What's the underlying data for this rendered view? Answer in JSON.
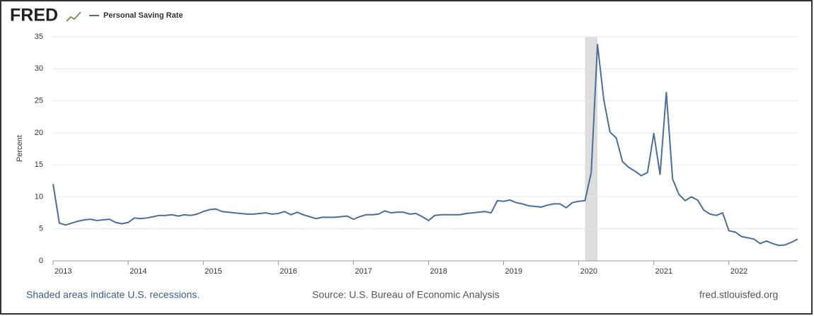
{
  "logo": "FRED",
  "chart_data": {
    "type": "line",
    "y_label": "Percent",
    "x": [
      "2013-01",
      "2013-02",
      "2013-03",
      "2013-04",
      "2013-05",
      "2013-06",
      "2013-07",
      "2013-08",
      "2013-09",
      "2013-10",
      "2013-11",
      "2013-12",
      "2014-01",
      "2014-02",
      "2014-03",
      "2014-04",
      "2014-05",
      "2014-06",
      "2014-07",
      "2014-08",
      "2014-09",
      "2014-10",
      "2014-11",
      "2014-12",
      "2015-01",
      "2015-02",
      "2015-03",
      "2015-04",
      "2015-05",
      "2015-06",
      "2015-07",
      "2015-08",
      "2015-09",
      "2015-10",
      "2015-11",
      "2015-12",
      "2016-01",
      "2016-02",
      "2016-03",
      "2016-04",
      "2016-05",
      "2016-06",
      "2016-07",
      "2016-08",
      "2016-09",
      "2016-10",
      "2016-11",
      "2016-12",
      "2017-01",
      "2017-02",
      "2017-03",
      "2017-04",
      "2017-05",
      "2017-06",
      "2017-07",
      "2017-08",
      "2017-09",
      "2017-10",
      "2017-11",
      "2017-12",
      "2018-01",
      "2018-02",
      "2018-03",
      "2018-04",
      "2018-05",
      "2018-06",
      "2018-07",
      "2018-08",
      "2018-09",
      "2018-10",
      "2018-11",
      "2018-12",
      "2019-01",
      "2019-02",
      "2019-03",
      "2019-04",
      "2019-05",
      "2019-06",
      "2019-07",
      "2019-08",
      "2019-09",
      "2019-10",
      "2019-11",
      "2019-12",
      "2020-01",
      "2020-02",
      "2020-03",
      "2020-04",
      "2020-05",
      "2020-06",
      "2020-07",
      "2020-08",
      "2020-09",
      "2020-10",
      "2020-11",
      "2020-12",
      "2021-01",
      "2021-02",
      "2021-03",
      "2021-04",
      "2021-05",
      "2021-06",
      "2021-07",
      "2021-08",
      "2021-09",
      "2021-10",
      "2021-11",
      "2021-12",
      "2022-01",
      "2022-02",
      "2022-03",
      "2022-04",
      "2022-05",
      "2022-06",
      "2022-07",
      "2022-08",
      "2022-09",
      "2022-10",
      "2022-11",
      "2022-12"
    ],
    "series": [
      {
        "name": "Personal Saving Rate",
        "color": "#4b6f96",
        "values": [
          12.0,
          5.9,
          5.6,
          5.9,
          6.2,
          6.4,
          6.5,
          6.3,
          6.4,
          6.5,
          6.0,
          5.8,
          6.0,
          6.7,
          6.6,
          6.7,
          6.9,
          7.1,
          7.1,
          7.2,
          7.0,
          7.2,
          7.1,
          7.3,
          7.7,
          8.0,
          8.1,
          7.7,
          7.6,
          7.5,
          7.4,
          7.3,
          7.3,
          7.4,
          7.5,
          7.3,
          7.4,
          7.7,
          7.2,
          7.6,
          7.2,
          6.9,
          6.6,
          6.8,
          6.8,
          6.8,
          6.9,
          7.0,
          6.5,
          6.9,
          7.2,
          7.2,
          7.3,
          7.8,
          7.5,
          7.6,
          7.6,
          7.3,
          7.4,
          6.9,
          6.3,
          7.1,
          7.2,
          7.2,
          7.2,
          7.2,
          7.4,
          7.5,
          7.6,
          7.7,
          7.5,
          9.4,
          9.3,
          9.5,
          9.1,
          8.9,
          8.6,
          8.5,
          8.4,
          8.7,
          8.9,
          8.9,
          8.3,
          9.1,
          9.3,
          9.4,
          13.8,
          33.8,
          25.2,
          20.1,
          19.2,
          15.5,
          14.6,
          14.0,
          13.3,
          13.8,
          19.9,
          13.5,
          26.3,
          12.8,
          10.4,
          9.4,
          10.0,
          9.5,
          7.9,
          7.3,
          7.1,
          7.5,
          4.7,
          4.5,
          3.8,
          3.6,
          3.4,
          2.7,
          3.1,
          2.7,
          2.4,
          2.5,
          2.9,
          3.4
        ]
      }
    ],
    "xlim": [
      "2013-01",
      "2022-12"
    ],
    "xticks": [
      {
        "value": "2013-01",
        "label": "2013"
      },
      {
        "value": "2014-01",
        "label": "2014"
      },
      {
        "value": "2015-01",
        "label": "2015"
      },
      {
        "value": "2016-01",
        "label": "2016"
      },
      {
        "value": "2017-01",
        "label": "2017"
      },
      {
        "value": "2018-01",
        "label": "2018"
      },
      {
        "value": "2019-01",
        "label": "2019"
      },
      {
        "value": "2020-01",
        "label": "2020"
      },
      {
        "value": "2021-01",
        "label": "2021"
      },
      {
        "value": "2022-01",
        "label": "2022"
      }
    ],
    "ylim": [
      0,
      35
    ],
    "yticks": [
      0,
      5,
      10,
      15,
      20,
      25,
      30,
      35
    ],
    "grid": true,
    "recessions": [
      [
        "2020-02",
        "2020-04"
      ]
    ],
    "recession_color": "#dddddd"
  },
  "footer": {
    "note": "Shaded areas indicate U.S. recessions.",
    "source": "Source: U.S. Bureau of Economic Analysis",
    "site": "fred.stlouisfed.org"
  }
}
